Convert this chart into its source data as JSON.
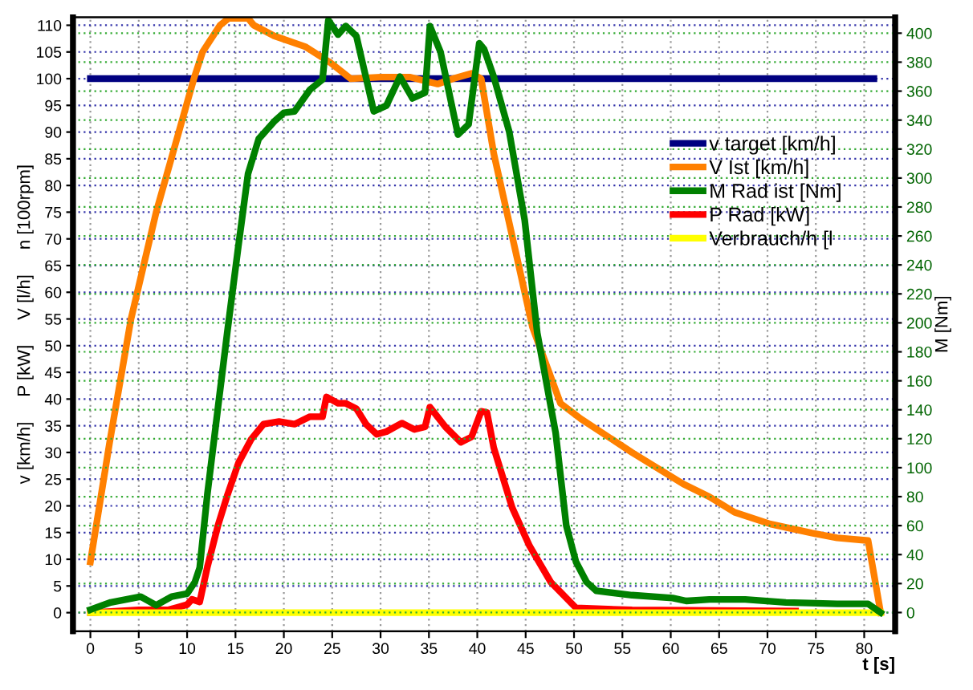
{
  "chart_data": {
    "type": "line",
    "xlabel": "t [s]",
    "ylabel": "v [km/h]     P [kW]     V [l/h]     n [100rpm]",
    "y2label": "M [Nm]",
    "xlim": [
      -1.8,
      83.2
    ],
    "xticks": [
      0,
      5,
      10,
      15,
      20,
      25,
      30,
      35,
      40,
      45,
      50,
      55,
      60,
      65,
      70,
      75,
      80
    ],
    "ylim": [
      -3.5,
      111.5
    ],
    "yticks": [
      0,
      5,
      10,
      15,
      20,
      25,
      30,
      35,
      40,
      45,
      50,
      55,
      60,
      65,
      70,
      75,
      80,
      85,
      90,
      95,
      100,
      105,
      110
    ],
    "y2lim": [
      -13,
      411
    ],
    "y2ticks": [
      0,
      20,
      40,
      60,
      80,
      100,
      120,
      140,
      160,
      180,
      200,
      220,
      240,
      260,
      280,
      300,
      320,
      340,
      360,
      380,
      400
    ],
    "grid": true,
    "legend": "top right",
    "marker": "none",
    "line_style": "solid",
    "series": [
      {
        "name": "v target [km/h]",
        "color": "#000080",
        "x": [
          0,
          81
        ],
        "values": [
          100,
          100
        ]
      },
      {
        "name": "V Ist [km/h]",
        "color": "#ff8000",
        "x": [
          0,
          2,
          4.2,
          6.8,
          10.7,
          11.6,
          13.4,
          14.3,
          16.3,
          16.9,
          19,
          22.2,
          24.8,
          26.9,
          30,
          33,
          35.9,
          37.5,
          39.4,
          40.4,
          41.7,
          45.7,
          48.6,
          50.7,
          56,
          61.3,
          64,
          66.6,
          70.3,
          74.6,
          77.2,
          80.4,
          81.7
        ],
        "values": [
          9.5,
          32,
          55,
          75,
          100,
          105,
          110,
          111.3,
          111.3,
          110,
          108,
          106,
          103,
          100,
          100.3,
          100.3,
          99,
          100,
          101,
          100,
          86,
          53.5,
          39.2,
          36.3,
          30,
          24.1,
          21.7,
          18.8,
          16.6,
          14.9,
          14,
          13.5,
          0
        ]
      },
      {
        "name": "M Rad ist [Nm]",
        "color": "#008000",
        "axis": "y2",
        "x": [
          0,
          2.1,
          5.2,
          6.8,
          8.4,
          10,
          10.8,
          11.3,
          12.1,
          13.2,
          14.2,
          15.3,
          16.3,
          17.4,
          19,
          20,
          21.1,
          22.7,
          24,
          24.6,
          25.6,
          26.4,
          27.5,
          29.3,
          30.6,
          32,
          33.3,
          34.6,
          35.1,
          36.2,
          38,
          39.1,
          40.2,
          40.7,
          41.7,
          43.3,
          44.9,
          46.2,
          48.1,
          49.2,
          50.2,
          51.3,
          52.3,
          56,
          60.2,
          61.6,
          64,
          67.7,
          71.9,
          77.2,
          80.4,
          81.7
        ],
        "values": [
          2,
          7,
          11,
          5,
          11,
          13,
          21,
          31,
          82,
          142,
          196,
          253,
          303,
          327,
          339,
          345,
          346,
          361,
          368,
          409,
          399,
          405,
          398,
          346,
          350,
          370,
          355,
          359,
          405,
          387,
          330,
          337,
          393,
          389,
          370,
          332,
          271,
          193,
          124,
          60,
          35,
          21,
          15,
          12,
          10,
          8,
          9,
          9,
          7,
          6,
          6,
          0
        ]
      },
      {
        "name": "P Rad [kW]",
        "color": "#ff0000",
        "x": [
          0,
          5,
          8,
          9,
          10,
          10.5,
          11.3,
          12.1,
          13.2,
          14.2,
          15.3,
          16.6,
          17.9,
          19.5,
          21.1,
          22.7,
          24,
          24.4,
          25.6,
          26.4,
          27.5,
          28.5,
          29.6,
          30.6,
          32.2,
          33.5,
          34.6,
          35.1,
          36.7,
          38.3,
          39.4,
          40.4,
          41,
          41.7,
          43.6,
          45.4,
          47.6,
          50.2,
          56,
          72.9
        ],
        "values": [
          0,
          0.5,
          0.5,
          1,
          1.5,
          2.5,
          2,
          8.6,
          16.4,
          22.2,
          28,
          32.4,
          35.3,
          35.8,
          35.3,
          36.7,
          36.7,
          40.4,
          39.2,
          39.2,
          38.2,
          35.3,
          33.4,
          33.9,
          35.5,
          34.3,
          34.8,
          38.5,
          34.8,
          31.9,
          32.9,
          37.7,
          37.5,
          30.9,
          19.7,
          12.5,
          5.7,
          0.9,
          0.5,
          0.3
        ]
      },
      {
        "name": "Verbrauch/h [l",
        "color": "#ffff00",
        "x": [
          0,
          81.7
        ],
        "values": [
          0,
          0
        ]
      }
    ]
  }
}
